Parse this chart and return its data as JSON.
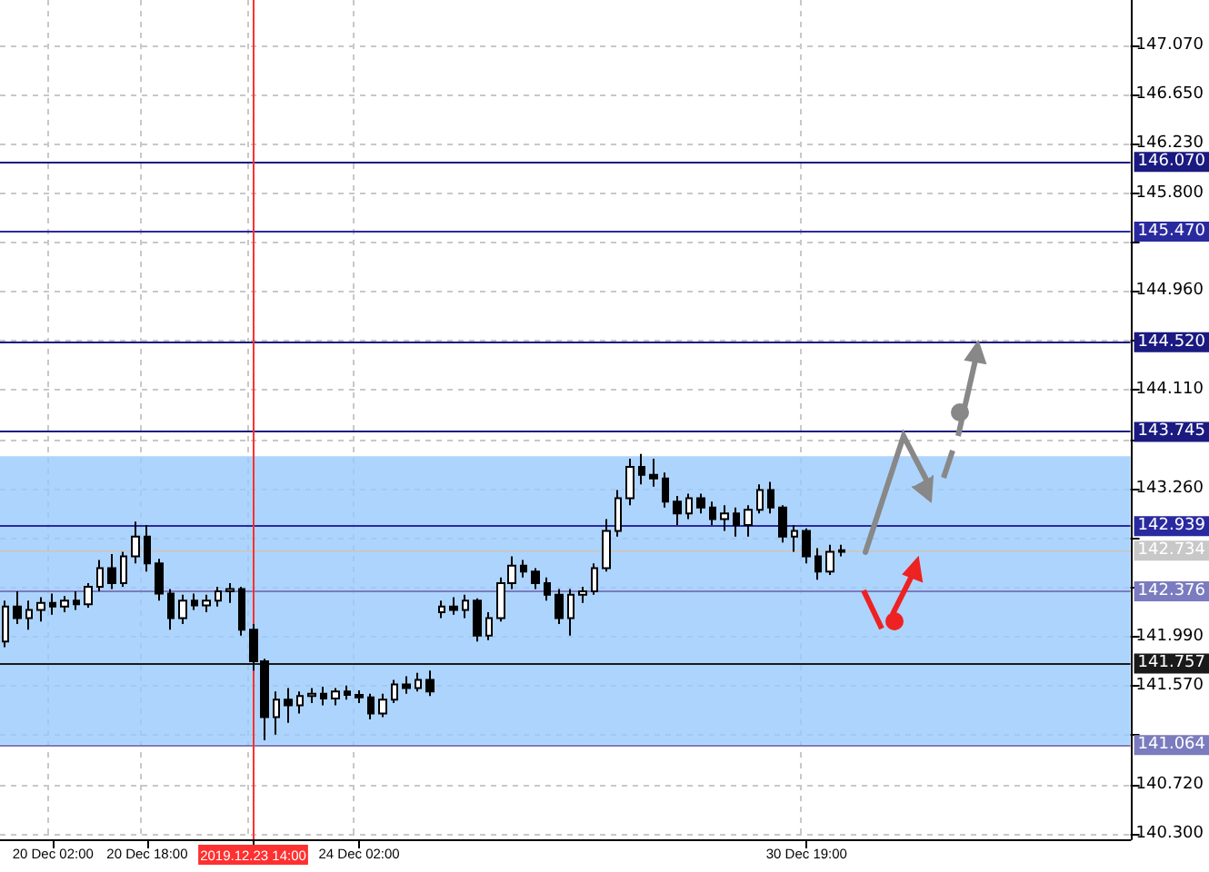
{
  "chart_data": {
    "type": "candlestick",
    "categories": [
      null,
      null,
      null,
      null,
      "20 Dec 02:00",
      null,
      null,
      null,
      null,
      null,
      null,
      null,
      "20 Dec 18:00",
      null,
      null,
      null,
      null,
      null,
      null,
      null,
      null,
      "2019.12.23 14:00",
      null,
      null,
      null,
      null,
      null,
      null,
      null,
      null,
      "24 Dec 02:00",
      null,
      null,
      null,
      null,
      null,
      null,
      null,
      null,
      null,
      null,
      null,
      null,
      null,
      null,
      null,
      null,
      null,
      null,
      null,
      null,
      null,
      null,
      null,
      null,
      null,
      null,
      null,
      null,
      null,
      null,
      null,
      null,
      null,
      null,
      null,
      null,
      null,
      "30 Dec 19:00",
      null,
      null,
      null,
      null,
      null,
      null,
      null,
      null,
      null,
      null,
      null,
      null,
      null,
      null,
      null,
      null,
      null,
      null,
      null,
      null,
      null,
      null,
      null,
      null,
      null,
      null,
      null
    ],
    "ohlc": [
      [
        141.95,
        142.3,
        141.9,
        142.25
      ],
      [
        142.25,
        142.38,
        142.1,
        142.15
      ],
      [
        142.15,
        142.3,
        142.05,
        142.22
      ],
      [
        142.22,
        142.33,
        142.12,
        142.28
      ],
      [
        142.28,
        142.36,
        142.18,
        142.25
      ],
      [
        142.25,
        142.34,
        142.2,
        142.3
      ],
      [
        142.3,
        142.38,
        142.22,
        142.27
      ],
      [
        142.27,
        142.45,
        142.24,
        142.42
      ],
      [
        142.42,
        142.65,
        142.38,
        142.58
      ],
      [
        142.58,
        142.7,
        142.4,
        142.45
      ],
      [
        142.45,
        142.72,
        142.42,
        142.68
      ],
      [
        142.68,
        142.98,
        142.62,
        142.85
      ],
      [
        142.85,
        142.95,
        142.55,
        142.62
      ],
      [
        142.62,
        142.66,
        142.3,
        142.36
      ],
      [
        142.36,
        142.4,
        142.05,
        142.15
      ],
      [
        142.15,
        142.35,
        142.1,
        142.3
      ],
      [
        142.3,
        142.36,
        142.22,
        142.26
      ],
      [
        142.26,
        142.35,
        142.2,
        142.3
      ],
      [
        142.3,
        142.42,
        142.25,
        142.38
      ],
      [
        142.38,
        142.45,
        142.28,
        142.4
      ],
      [
        142.4,
        142.42,
        142.0,
        142.05
      ],
      [
        142.05,
        142.1,
        141.7,
        141.78
      ],
      [
        141.78,
        141.8,
        141.1,
        141.3
      ],
      [
        141.3,
        141.52,
        141.15,
        141.45
      ],
      [
        141.45,
        141.55,
        141.25,
        141.4
      ],
      [
        141.4,
        141.52,
        141.33,
        141.48
      ],
      [
        141.48,
        141.55,
        141.42,
        141.5
      ],
      [
        141.5,
        141.56,
        141.4,
        141.46
      ],
      [
        141.46,
        141.55,
        141.4,
        141.52
      ],
      [
        141.52,
        141.57,
        141.45,
        141.49
      ],
      [
        141.49,
        141.53,
        141.42,
        141.47
      ],
      [
        141.47,
        141.5,
        141.28,
        141.33
      ],
      [
        141.33,
        141.5,
        141.3,
        141.45
      ],
      [
        141.45,
        141.62,
        141.42,
        141.58
      ],
      [
        141.58,
        141.65,
        141.5,
        141.55
      ],
      [
        141.55,
        141.68,
        141.52,
        141.62
      ],
      [
        141.62,
        141.7,
        141.48,
        141.52
      ],
      [
        142.2,
        142.3,
        142.15,
        142.25
      ],
      [
        142.25,
        142.33,
        142.18,
        142.22
      ],
      [
        142.22,
        142.35,
        142.15,
        142.3
      ],
      [
        142.3,
        142.32,
        141.95,
        142.0
      ],
      [
        142.0,
        142.2,
        141.96,
        142.15
      ],
      [
        142.15,
        142.5,
        142.12,
        142.45
      ],
      [
        142.45,
        142.68,
        142.4,
        142.6
      ],
      [
        142.6,
        142.65,
        142.5,
        142.55
      ],
      [
        142.55,
        142.58,
        142.4,
        142.45
      ],
      [
        142.45,
        142.5,
        142.3,
        142.35
      ],
      [
        142.35,
        142.4,
        142.1,
        142.15
      ],
      [
        142.15,
        142.4,
        142.0,
        142.35
      ],
      [
        142.35,
        142.42,
        142.28,
        142.38
      ],
      [
        142.38,
        142.62,
        142.35,
        142.58
      ],
      [
        142.58,
        143.0,
        142.55,
        142.9
      ],
      [
        142.9,
        143.25,
        142.85,
        143.18
      ],
      [
        143.18,
        143.52,
        143.12,
        143.45
      ],
      [
        143.45,
        143.56,
        143.3,
        143.38
      ],
      [
        143.38,
        143.52,
        143.28,
        143.35
      ],
      [
        143.35,
        143.4,
        143.1,
        143.15
      ],
      [
        143.15,
        143.2,
        142.95,
        143.05
      ],
      [
        143.05,
        143.22,
        143.0,
        143.18
      ],
      [
        143.18,
        143.22,
        143.05,
        143.1
      ],
      [
        143.1,
        143.15,
        142.95,
        143.0
      ],
      [
        143.0,
        143.12,
        142.9,
        143.05
      ],
      [
        143.05,
        143.1,
        142.85,
        142.95
      ],
      [
        142.95,
        143.12,
        142.85,
        143.08
      ],
      [
        143.08,
        143.3,
        143.05,
        143.25
      ],
      [
        143.25,
        143.32,
        143.05,
        143.1
      ],
      [
        143.1,
        143.12,
        142.8,
        142.85
      ],
      [
        142.85,
        142.95,
        142.72,
        142.9
      ],
      [
        142.9,
        142.92,
        142.62,
        142.68
      ],
      [
        142.68,
        142.75,
        142.48,
        142.55
      ],
      [
        142.55,
        142.78,
        142.52,
        142.72
      ],
      [
        142.72,
        142.78,
        142.68,
        142.734
      ],
      null,
      null,
      null,
      null,
      null,
      null,
      null,
      null,
      null,
      null,
      null,
      null,
      null,
      null,
      null,
      null,
      null,
      null,
      null,
      null,
      null,
      null,
      null,
      null
    ],
    "color": "#000000",
    "ylim": [
      140.25,
      147.46
    ],
    "yticks": [
      {
        "value": 140.3,
        "label": "140.300"
      },
      {
        "value": 140.72,
        "label": "140.720"
      },
      {
        "value": 141.15,
        "label": null
      },
      {
        "value": 141.57,
        "label": "141.570"
      },
      {
        "value": 141.99,
        "label": "141.990"
      },
      {
        "value": 142.41,
        "label": null
      },
      {
        "value": 142.84,
        "label": null
      },
      {
        "value": 143.26,
        "label": "143.260"
      },
      {
        "value": 143.68,
        "label": null
      },
      {
        "value": 144.11,
        "label": "144.110"
      },
      {
        "value": 144.53,
        "label": null
      },
      {
        "value": 144.96,
        "label": "144.960"
      },
      {
        "value": 145.38,
        "label": null
      },
      {
        "value": 145.8,
        "label": "145.800"
      },
      {
        "value": 146.23,
        "label": "146.230"
      },
      {
        "value": 146.65,
        "label": "146.650"
      },
      {
        "value": 147.07,
        "label": "147.070"
      }
    ],
    "grid": true,
    "ref_lines": [
      {
        "axis": "y",
        "value": 146.07,
        "label": "146.070",
        "color": "#1a1a80"
      },
      {
        "axis": "y",
        "value": 145.47,
        "label": "145.470",
        "color": "#2a2aa0"
      },
      {
        "axis": "y",
        "value": 144.52,
        "label": "144.520",
        "color": "#1a1a80"
      },
      {
        "axis": "y",
        "value": 143.745,
        "label": "143.745",
        "color": "#1a1a80"
      },
      {
        "axis": "y",
        "value": 142.939,
        "label": "142.939",
        "color": "#2a2aa0"
      },
      {
        "axis": "y",
        "value": 142.734,
        "label": "142.734",
        "color": "#c8c8c8"
      },
      {
        "axis": "y",
        "value": 142.376,
        "label": "142.376",
        "color": "#7b7bbf"
      },
      {
        "axis": "y",
        "value": 141.757,
        "label": "141.757",
        "color": "#1a1a1a"
      },
      {
        "axis": "y",
        "value": 141.064,
        "label": "141.064",
        "color": "#7b7bbf"
      },
      {
        "axis": "x",
        "value": "2019.12.23 14:00",
        "color": "#ff3030"
      }
    ],
    "bands": [
      {
        "axis": "y",
        "from": 141.064,
        "to": 143.54,
        "color": "#99c9fb"
      }
    ]
  }
}
